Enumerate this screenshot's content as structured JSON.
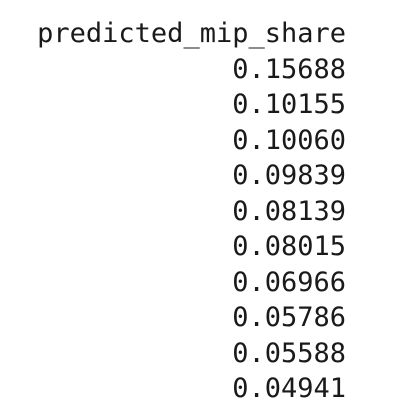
{
  "output": {
    "column_header": "predicted_mip_share",
    "values": [
      "0.15688",
      "0.10155",
      "0.10060",
      "0.09839",
      "0.08139",
      "0.08015",
      "0.06966",
      "0.05786",
      "0.05588",
      "0.04941"
    ]
  }
}
